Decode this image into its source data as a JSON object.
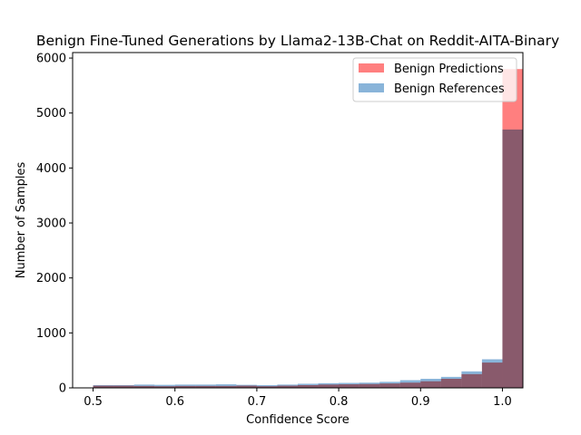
{
  "chart_data": {
    "type": "bar",
    "title": "Benign Fine-Tuned Generations by Llama2-13B-Chat on Reddit-AITA-Binary",
    "xlabel": "Confidence Score",
    "ylabel": "Number of Samples",
    "xlim": [
      0.475,
      1.025
    ],
    "ylim": [
      0,
      6100
    ],
    "x_ticks": [
      0.5,
      0.6,
      0.7,
      0.8,
      0.9,
      1.0
    ],
    "x_tick_labels": [
      "0.5",
      "0.6",
      "0.7",
      "0.8",
      "0.9",
      "1.0"
    ],
    "y_ticks": [
      0,
      1000,
      2000,
      3000,
      4000,
      5000,
      6000
    ],
    "y_tick_labels": [
      "0",
      "1000",
      "2000",
      "3000",
      "4000",
      "5000",
      "6000"
    ],
    "bin_edges": [
      0.5,
      0.525,
      0.55,
      0.575,
      0.6,
      0.625,
      0.65,
      0.675,
      0.7,
      0.725,
      0.75,
      0.775,
      0.8,
      0.825,
      0.85,
      0.875,
      0.9,
      0.925,
      0.95,
      0.975,
      1.0
    ],
    "legend_position": "top-right",
    "series": [
      {
        "name": "Benign Predictions",
        "color": "#ff7f7f",
        "values": [
          40,
          40,
          35,
          30,
          35,
          35,
          35,
          40,
          30,
          40,
          50,
          60,
          65,
          70,
          80,
          95,
          120,
          165,
          250,
          460,
          5800
        ]
      },
      {
        "name": "Benign References",
        "color": "#89b4d9",
        "values": [
          50,
          50,
          60,
          55,
          60,
          60,
          65,
          55,
          50,
          60,
          75,
          85,
          90,
          95,
          110,
          140,
          165,
          200,
          300,
          520,
          4700
        ]
      }
    ]
  }
}
